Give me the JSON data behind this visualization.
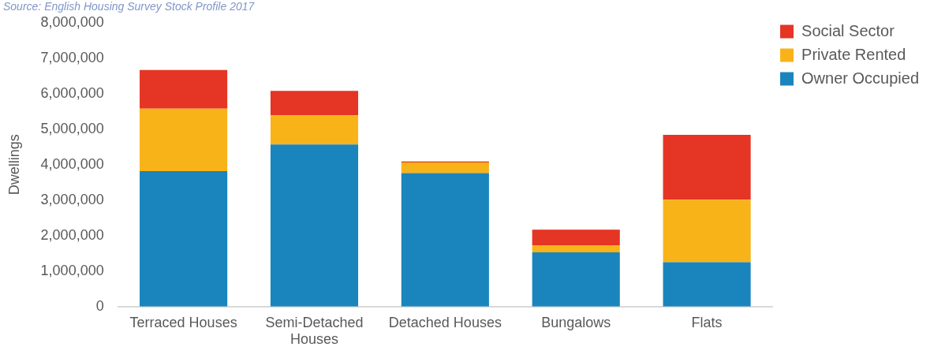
{
  "chart_data": {
    "type": "bar",
    "stacked": true,
    "ylabel": "Dwellings",
    "annotations": [
      "Source: English Housing Survey Stock Profile 2017"
    ],
    "categories": [
      "Terraced Houses",
      "Semi-Detached Houses",
      "Detached Houses",
      "Bungalows",
      "Flats"
    ],
    "series": [
      {
        "name": "Owner Occupied",
        "color": "#1a85bc",
        "values": [
          3820000,
          4570000,
          3760000,
          1530000,
          1250000
        ]
      },
      {
        "name": "Private Rented",
        "color": "#f8b319",
        "values": [
          1760000,
          820000,
          300000,
          200000,
          1760000
        ]
      },
      {
        "name": "Social Sector",
        "color": "#e43525",
        "values": [
          1090000,
          690000,
          30000,
          440000,
          1830000
        ]
      }
    ],
    "ylim": [
      0,
      8000000
    ],
    "yticks": [
      0,
      {
        "value": 1000000,
        "label": "1,000,000"
      },
      {
        "value": 2000000,
        "label": "2,000,000"
      },
      {
        "value": 3000000,
        "label": "3,000,000"
      },
      {
        "value": 4000000,
        "label": "4,000,000"
      },
      {
        "value": 5000000,
        "label": "5,000,000"
      },
      {
        "value": 6000000,
        "label": "6,000,000"
      },
      {
        "value": 7000000,
        "label": "7,000,000"
      },
      {
        "value": 8000000,
        "label": "8,000,000"
      }
    ],
    "grid": false,
    "legend": "top right"
  }
}
